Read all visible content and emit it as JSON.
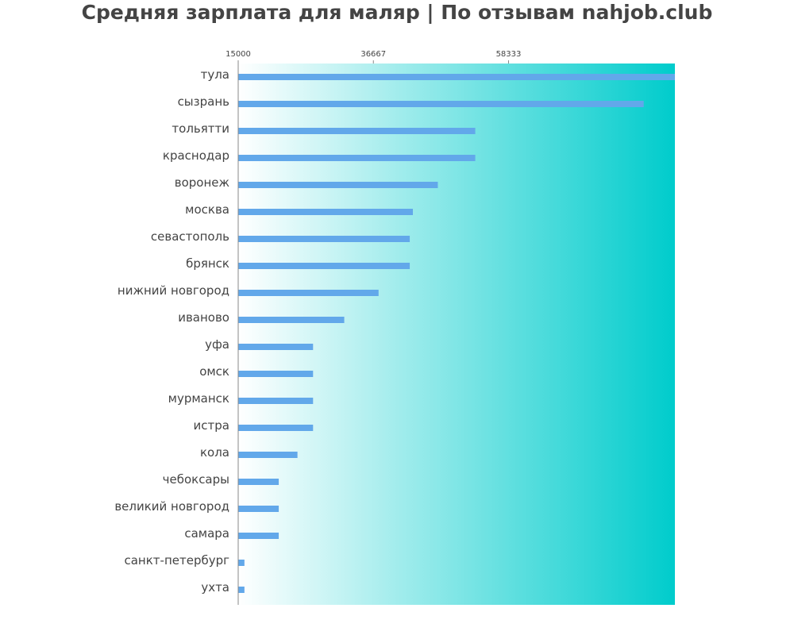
{
  "title": "Средняя зарплата для маляр | По отзывам nahjob.club",
  "colors": {
    "bar": "#62a8ea",
    "gradient_start": "#ffffff",
    "gradient_end": "#00cccc",
    "axis": "#888888",
    "text": "#444444"
  },
  "chart_data": {
    "type": "bar",
    "orientation": "horizontal",
    "title": "Средняя зарплата для маляр | По отзывам nahjob.club",
    "xlabel": "",
    "ylabel": "",
    "xlim": [
      15000,
      85000
    ],
    "x_ticks": [
      15000,
      36667,
      58333
    ],
    "x_tick_labels": [
      "15000",
      "36667",
      "58333"
    ],
    "x_axis_position": "top",
    "grid": false,
    "categories": [
      "тула",
      "сызрань",
      "тольятти",
      "краснодар",
      "воронеж",
      "москва",
      "севастополь",
      "брянск",
      "нижний новгород",
      "иваново",
      "уфа",
      "омск",
      "мурманск",
      "истра",
      "кола",
      "чебоксары",
      "великий новгород",
      "самара",
      "санкт-петербург",
      "ухта"
    ],
    "values": [
      85000,
      80000,
      53000,
      53000,
      47000,
      43000,
      42500,
      42500,
      37500,
      32000,
      27000,
      27000,
      27000,
      27000,
      24500,
      21500,
      21500,
      21500,
      16000,
      16000
    ]
  }
}
